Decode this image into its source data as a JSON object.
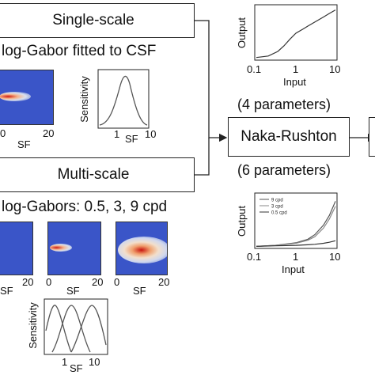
{
  "single_scale": {
    "box_label": "Single-scale",
    "caption": "log-Gabor fitted to CSF",
    "heatmap_ticks": [
      "0",
      "20"
    ],
    "heatmap_xlabel": "SF",
    "sens_ylabel": "Sensitivity",
    "sens_ticks": [
      "1",
      "10"
    ],
    "sens_xlabel": "SF"
  },
  "multi_scale": {
    "box_label": "Multi-scale",
    "caption": "log-Gabors: 0.5, 3, 9 cpd",
    "heatmap_ticks": [
      "20",
      "0",
      "20",
      "0",
      "20"
    ],
    "heatmap_xlabel": "SF",
    "sens_ylabel": "Sensitivity",
    "sens_ticks": [
      "1",
      "10"
    ],
    "sens_xlabel": "SF"
  },
  "naka_rushton": {
    "box_label": "Naka-Rushton",
    "params_top": "(4 parameters)",
    "params_bottom": "(6 parameters)"
  },
  "chart_data": [
    {
      "type": "line",
      "xlabel": "Input",
      "ylabel": "Output",
      "x_scale": "log",
      "xticks": [
        "0.1",
        "1",
        "10"
      ],
      "series": [
        {
          "x": [
            0.1,
            0.2,
            0.35,
            0.5,
            0.7,
            1,
            1.5,
            2,
            3,
            5,
            7,
            10
          ],
          "y": [
            0.02,
            0.05,
            0.14,
            0.25,
            0.38,
            0.5,
            0.58,
            0.64,
            0.72,
            0.82,
            0.89,
            0.96
          ]
        }
      ]
    },
    {
      "type": "line",
      "xlabel": "Input",
      "ylabel": "Output",
      "x_scale": "log",
      "xticks": [
        "0.1",
        "1",
        "10"
      ],
      "legend": "top-left",
      "series": [
        {
          "name": "9 cpd",
          "x": [
            0.1,
            0.3,
            1,
            2,
            3,
            5,
            7,
            10
          ],
          "y": [
            0.01,
            0.03,
            0.08,
            0.15,
            0.24,
            0.43,
            0.62,
            0.9
          ]
        },
        {
          "name": "3 cpd",
          "x": [
            0.1,
            0.3,
            1,
            2,
            3,
            5,
            7,
            10
          ],
          "y": [
            0.01,
            0.03,
            0.07,
            0.13,
            0.2,
            0.37,
            0.55,
            0.8
          ]
        },
        {
          "name": "0.5 cpd",
          "x": [
            0.1,
            0.3,
            1,
            2,
            3,
            5,
            7,
            10
          ],
          "y": [
            0.01,
            0.02,
            0.03,
            0.04,
            0.05,
            0.07,
            0.09,
            0.12
          ]
        }
      ]
    }
  ]
}
